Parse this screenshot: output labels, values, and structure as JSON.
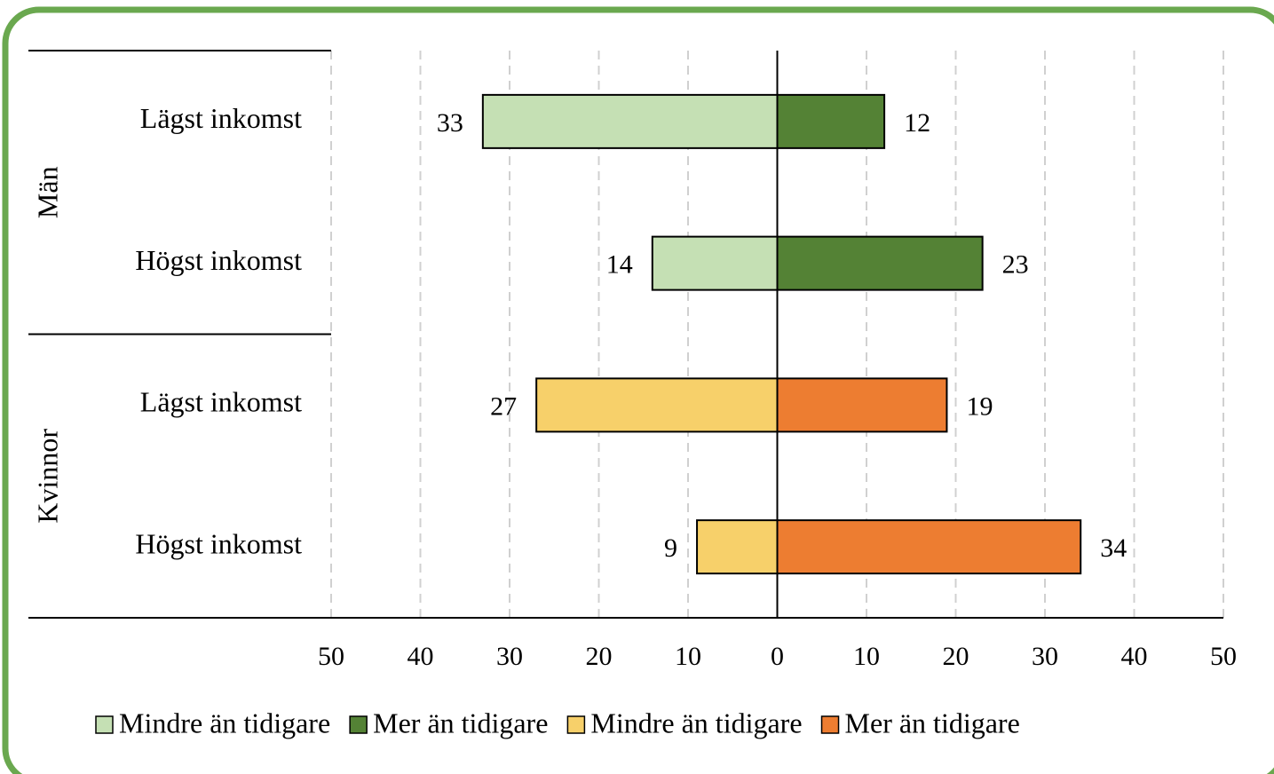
{
  "chart_data": {
    "type": "diverging-bar",
    "categories": [
      "Lägst inkomst",
      "Högst inkomst",
      "Lägst inkomst",
      "Högst inkomst"
    ],
    "groups": [
      {
        "name": "Män",
        "count": 2
      },
      {
        "name": "Kvinnor",
        "count": 2
      }
    ],
    "series": [
      {
        "name": "Mindre än tidigare",
        "color": "#c5e0b4",
        "values": [
          -33,
          -14,
          null,
          null
        ],
        "value_labels": [
          "33",
          "14",
          null,
          null
        ]
      },
      {
        "name": "Mer än tidigare",
        "color": "#548235",
        "values": [
          12,
          23,
          null,
          null
        ]
      },
      {
        "name": "Mindre än tidigare",
        "color": "#f7d06a",
        "values": [
          null,
          null,
          -27,
          -9
        ],
        "value_labels": [
          null,
          null,
          "27",
          "9"
        ]
      },
      {
        "name": "Mer än tidigare",
        "color": "#ed7d31",
        "values": [
          null,
          null,
          19,
          34
        ]
      }
    ],
    "xlim": [
      -50,
      50
    ],
    "xticks": [
      {
        "value": -50,
        "label": "50"
      },
      {
        "value": -40,
        "label": "40"
      },
      {
        "value": -30,
        "label": "30"
      },
      {
        "value": -20,
        "label": "20"
      },
      {
        "value": -10,
        "label": "10"
      },
      0,
      10,
      20,
      30,
      40,
      50
    ],
    "grid": true,
    "legend": "bottom"
  }
}
